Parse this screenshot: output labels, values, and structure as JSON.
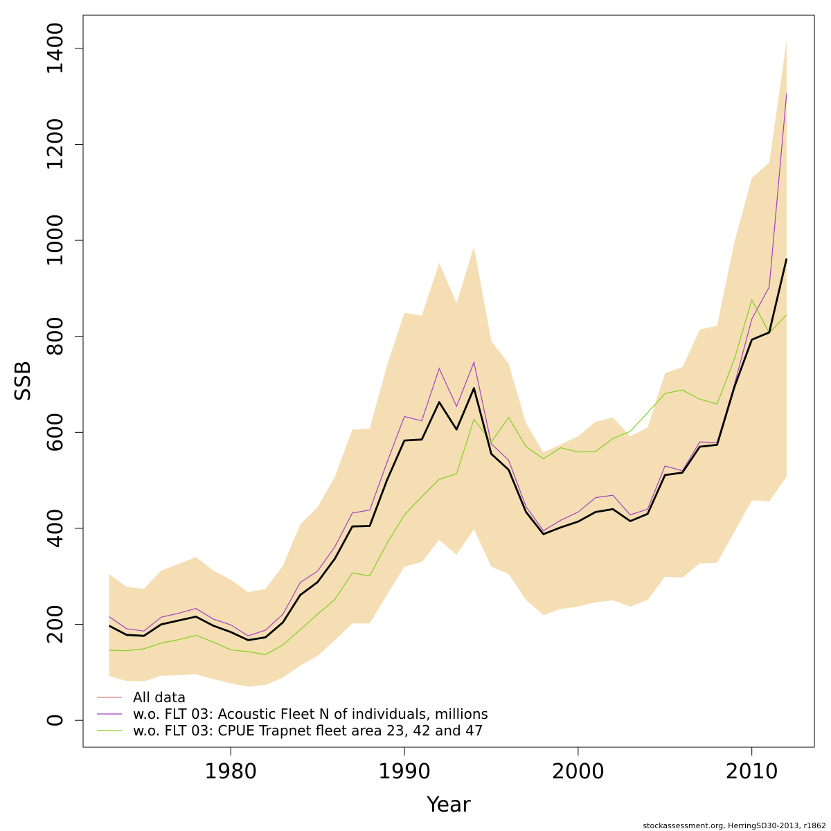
{
  "chart_data": {
    "type": "line",
    "xlabel": "Year",
    "ylabel": "SSB",
    "xlim": [
      1971.5,
      2013.6
    ],
    "ylim": [
      -56,
      1469
    ],
    "xticks": [
      1980,
      1990,
      2000,
      2010
    ],
    "yticks": [
      0,
      200,
      400,
      600,
      800,
      1000,
      1200,
      1400
    ],
    "grid": false,
    "legend_position": "bottom-left",
    "x": [
      1973,
      1974,
      1975,
      1976,
      1977,
      1978,
      1979,
      1980,
      1981,
      1982,
      1983,
      1984,
      1985,
      1986,
      1987,
      1988,
      1989,
      1990,
      1991,
      1992,
      1993,
      1994,
      1995,
      1996,
      1997,
      1998,
      1999,
      2000,
      2001,
      2002,
      2003,
      2004,
      2005,
      2006,
      2007,
      2008,
      2009,
      2010,
      2011,
      2012
    ],
    "band": {
      "color": "#f5deb3",
      "upper": [
        305,
        278,
        274,
        312,
        326,
        340,
        312,
        293,
        267,
        274,
        322,
        408,
        444,
        508,
        606,
        608,
        740,
        849,
        843,
        953,
        869,
        987,
        790,
        743,
        619,
        558,
        575,
        592,
        622,
        631,
        592,
        610,
        723,
        736,
        814,
        822,
        997,
        1130,
        1162,
        1415
      ],
      "lower": [
        92,
        82,
        81,
        93,
        94,
        96,
        86,
        77,
        70,
        74,
        89,
        114,
        134,
        167,
        202,
        202,
        262,
        320,
        330,
        376,
        345,
        398,
        320,
        305,
        251,
        219,
        232,
        237,
        246,
        250,
        237,
        251,
        299,
        297,
        327,
        328,
        393,
        458,
        456,
        508
      ]
    },
    "series": [
      {
        "name": "All data",
        "color": "#e08080",
        "values": [
          197,
          178,
          176,
          200,
          208,
          216,
          197,
          184,
          167,
          173,
          204,
          261,
          288,
          337,
          404,
          405,
          501,
          583,
          585,
          663,
          606,
          692,
          555,
          522,
          434,
          388,
          402,
          414,
          434,
          440,
          415,
          430,
          511,
          516,
          570,
          574,
          695,
          793,
          808,
          962
        ]
      },
      {
        "name": "w.o. FLT 03: Acoustic Fleet   N of individuals, millions",
        "color": "#a040c0",
        "values": [
          216,
          191,
          186,
          215,
          223,
          233,
          211,
          199,
          176,
          188,
          221,
          287,
          311,
          362,
          432,
          438,
          538,
          633,
          624,
          733,
          654,
          746,
          576,
          542,
          445,
          395,
          417,
          434,
          464,
          469,
          428,
          440,
          530,
          520,
          580,
          579,
          700,
          836,
          903,
          1306
        ]
      },
      {
        "name": "w.o. FLT 03: CPUE Trapnet fleet area 23, 42 and 47",
        "color": "#80d020",
        "values": [
          146,
          145,
          149,
          161,
          168,
          177,
          163,
          147,
          143,
          137,
          157,
          189,
          221,
          252,
          307,
          301,
          369,
          428,
          466,
          502,
          514,
          627,
          580,
          631,
          570,
          545,
          568,
          559,
          560,
          587,
          602,
          641,
          681,
          688,
          669,
          659,
          753,
          876,
          807,
          845
        ]
      }
    ],
    "base_line": {
      "color": "#000000",
      "values": [
        197,
        178,
        176,
        200,
        208,
        216,
        197,
        184,
        167,
        173,
        204,
        261,
        288,
        337,
        404,
        405,
        501,
        583,
        585,
        663,
        606,
        692,
        555,
        522,
        434,
        388,
        402,
        414,
        434,
        440,
        415,
        430,
        511,
        516,
        570,
        574,
        695,
        793,
        808,
        962
      ]
    }
  },
  "credit": "stockassessment.org, HerringSD30-2013, r1862"
}
